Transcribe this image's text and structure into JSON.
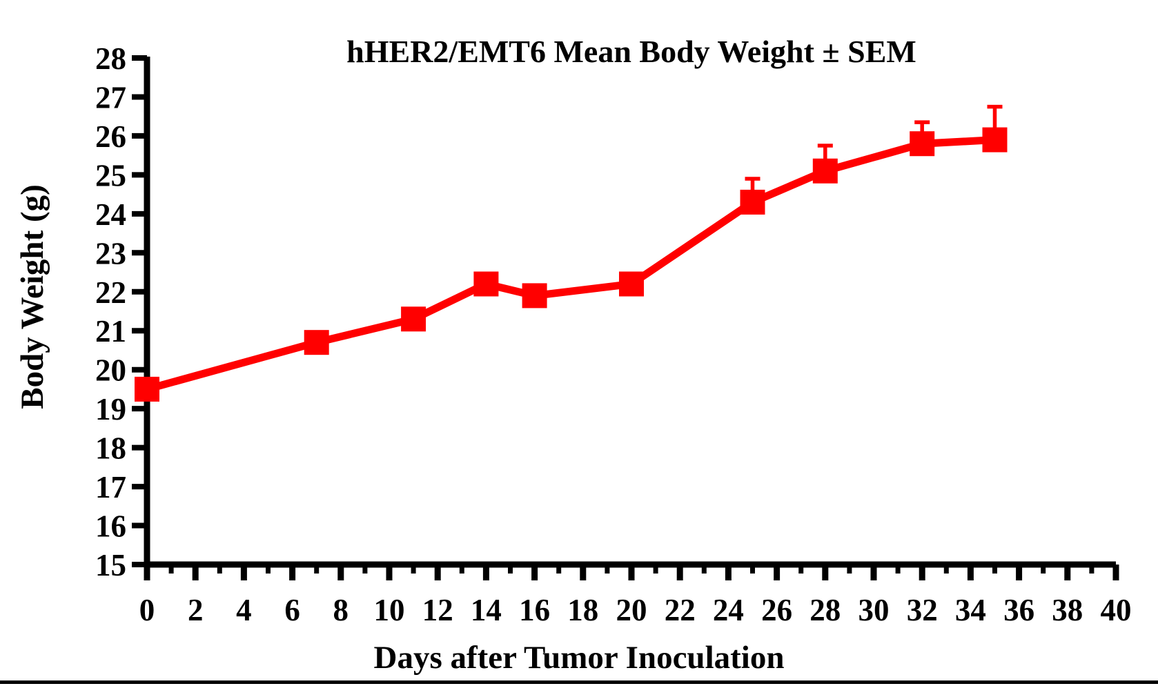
{
  "chart_data": {
    "type": "line",
    "title": "hHER2/EMT6 Mean Body Weight ± SEM",
    "xlabel": "Days after Tumor Inoculation",
    "ylabel": "Body Weight (g)",
    "xlim": [
      0,
      40
    ],
    "ylim": [
      15,
      28
    ],
    "x_major_ticks": [
      0,
      2,
      4,
      6,
      8,
      10,
      12,
      14,
      16,
      18,
      20,
      22,
      24,
      26,
      28,
      30,
      32,
      34,
      36,
      38,
      40
    ],
    "x_minor_ticks": [
      1,
      3,
      5,
      7,
      9,
      11,
      13,
      15,
      17,
      19,
      21,
      23,
      25,
      27,
      29,
      31,
      33,
      35,
      37,
      39
    ],
    "y_ticks": [
      15,
      16,
      17,
      18,
      19,
      20,
      21,
      22,
      23,
      24,
      25,
      26,
      27,
      28
    ],
    "grid": false,
    "legend": false,
    "series": [
      {
        "name": "hHER2/EMT6",
        "color": "#ff0000",
        "marker": "square",
        "x": [
          0,
          7,
          11,
          14,
          16,
          20,
          25,
          28,
          32,
          35
        ],
        "y": [
          19.5,
          20.7,
          21.3,
          22.2,
          21.9,
          22.2,
          24.3,
          25.1,
          25.8,
          25.9
        ],
        "sem_upper": [
          0,
          0,
          0,
          0,
          0,
          0,
          0.6,
          0.65,
          0.55,
          0.85
        ]
      }
    ]
  },
  "colors": {
    "accent": "#ff0000",
    "axis": "#000000"
  }
}
